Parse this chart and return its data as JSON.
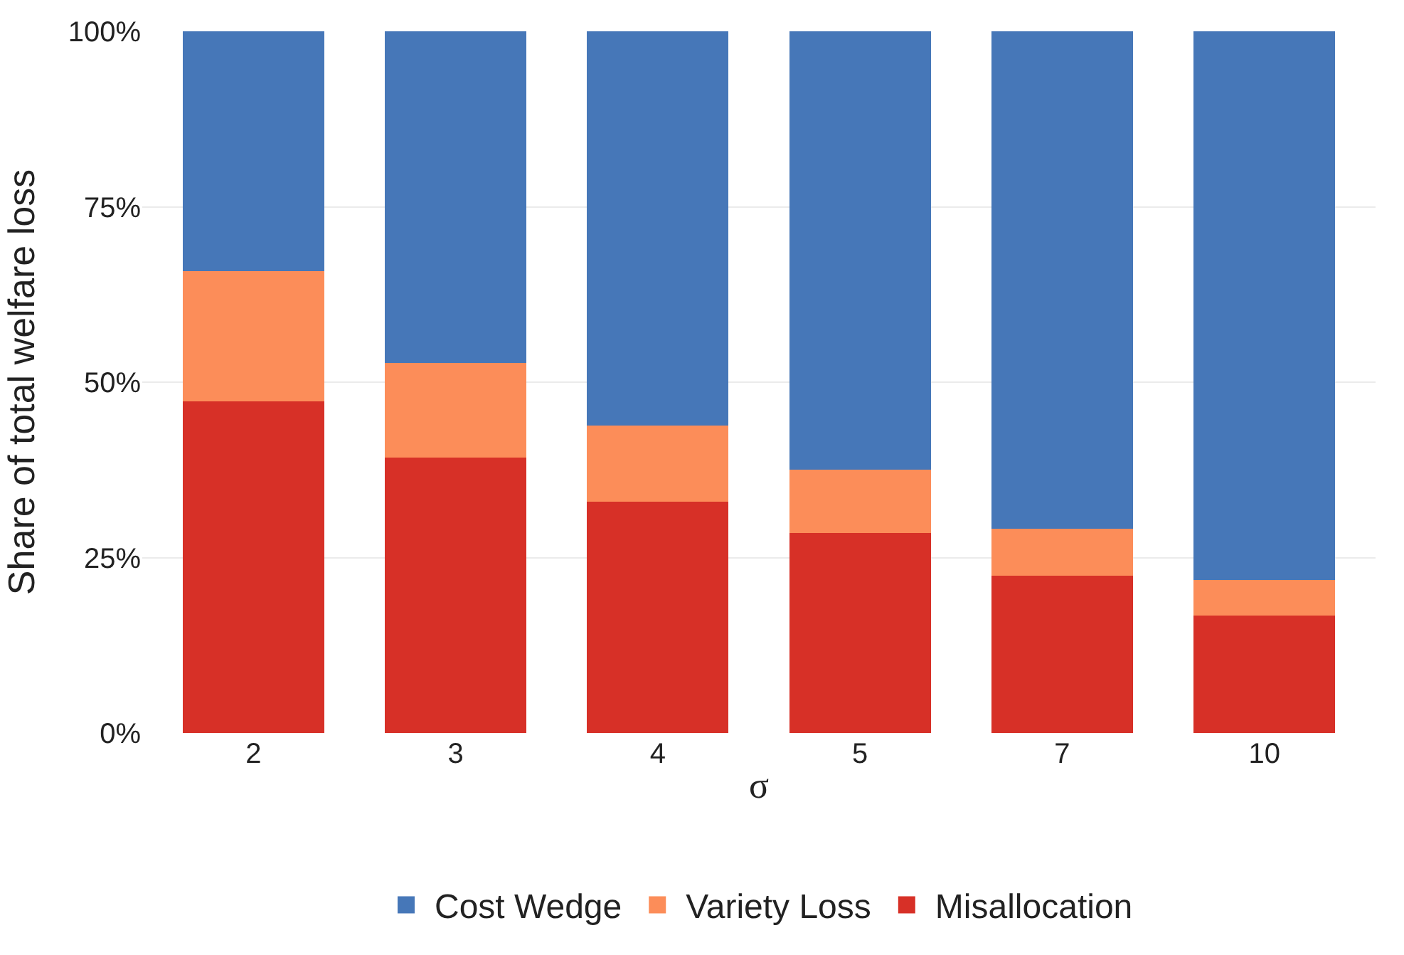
{
  "chart_data": {
    "type": "bar",
    "stacked": true,
    "categories": [
      "2",
      "3",
      "4",
      "5",
      "7",
      "10"
    ],
    "series": [
      {
        "name": "Misallocation",
        "color": "#d73027",
        "values": [
          47.3,
          39.3,
          33.0,
          28.5,
          22.4,
          16.7
        ]
      },
      {
        "name": "Variety Loss",
        "color": "#fc8d59",
        "values": [
          18.5,
          13.4,
          10.8,
          9.0,
          6.7,
          5.1
        ]
      },
      {
        "name": "Cost Wedge",
        "color": "#4677b8",
        "values": [
          34.2,
          47.3,
          56.2,
          62.5,
          70.9,
          78.2
        ]
      }
    ],
    "xlabel": "σ",
    "ylabel": "Share of total welfare loss",
    "ylim": [
      0,
      100
    ],
    "yticks": [
      {
        "value": 0,
        "label": "0%"
      },
      {
        "value": 25,
        "label": "25%"
      },
      {
        "value": 50,
        "label": "50%"
      },
      {
        "value": 75,
        "label": "75%"
      },
      {
        "value": 100,
        "label": "100%"
      }
    ],
    "grid": "y",
    "legend": "bottom"
  }
}
